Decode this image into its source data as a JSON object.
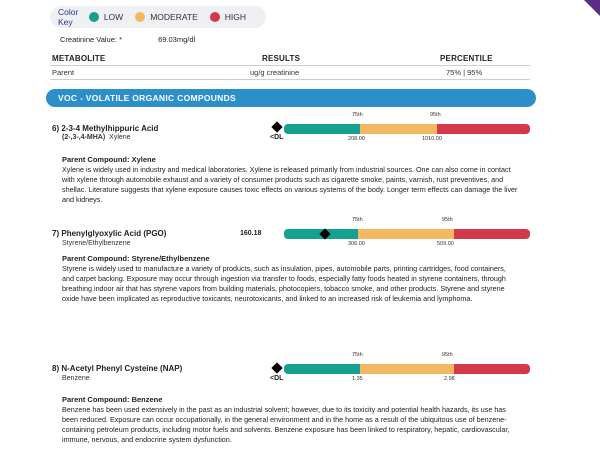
{
  "color_key": {
    "title": "Color Key",
    "items": [
      {
        "label": "LOW",
        "color": "#14a18f"
      },
      {
        "label": "MODERATE",
        "color": "#f5b862"
      },
      {
        "label": "HIGH",
        "color": "#d23a4c"
      }
    ]
  },
  "creatinine": {
    "label": "Creatinine Value: *",
    "value": "69.03mg/dl"
  },
  "columns": {
    "metabolite": "METABOLITE",
    "results": "RESULTS",
    "percentile": "PERCENTILE",
    "metabolite_sub": "Parent",
    "results_sub": "ug/g creatinine",
    "percentile_sub": "75% | 95%"
  },
  "section": {
    "title": "VOC - VOLATILE ORGANIC COMPOUNDS"
  },
  "entries": [
    {
      "number": "6)",
      "name": "2-3-4 Methylhippuric Acid",
      "abbr": "(2-,3-,4-MHA)",
      "parent": "Xylene",
      "result": "<DL",
      "p75_label": "75th",
      "p95_label": "95th",
      "threshold_75": "208.00",
      "threshold_95": "1010.00",
      "marker_fraction": 0.0,
      "parent_title": "Parent Compound: Xylene",
      "description": "Xylene is widely used in industry and medical laboratories. Xylene is released primarily from industrial sources. One can also come in contact with xylene through automobile exhaust and a variety of consumer products such as cigarette smoke, paints, varnish, rust preventives, and shellac. Literature suggests that xylene exposure causes toxic effects on various systems of the body. Longer term effects can damage the liver and kidneys."
    },
    {
      "number": "7)",
      "name": "Phenylglyoxylic Acid (PGO)",
      "abbr": "",
      "parent": "Styrene/Ethylbenzene",
      "result": "160.18",
      "p75_label": "75th",
      "p95_label": "95th",
      "threshold_75": "306.00",
      "threshold_95": "509.00",
      "marker_fraction": 0.16,
      "parent_title": "Parent Compound: Styrene/Ethylbenzene",
      "description": "Styrene is widely used to manufacture a variety of products, such as insulation, pipes, automobile parts, printing cartridges, food containers, and carpet backing. Exposure may occur through ingestion via transfer to foods, especially fatty foods heated in styrene containers, through breathing indoor air that has styrene vapors from building materials, photocopiers, tobacco smoke, and other products. Styrene and styrene oxide have been implicated as reproductive toxicants, neurotoxicants, and linked to an increased risk of leukemia and lymphoma."
    },
    {
      "number": "8)",
      "name": "N-Acetyl Phenyl Cysteine (NAP)",
      "abbr": "",
      "parent": "Benzene",
      "result": "<DL",
      "p75_label": "75th",
      "p95_label": "95th",
      "threshold_75": "1.35",
      "threshold_95": "2.98",
      "marker_fraction": 0.0,
      "parent_title": "Parent Compound: Benzene",
      "description": "Benzene has been used extensively in the past as an industrial solvent; however, due to its toxicity and potential health hazards, its use has been reduced. Exposure can occur occupationally, in the general environment and in the home as a result of the ubiquitous use of benzene-containing petroleum products, including motor fuels and solvents. Benzene exposure has been linked to respiratory, hepatic, cardiovascular, immune, nervous, and endocrine system dysfunction."
    }
  ]
}
